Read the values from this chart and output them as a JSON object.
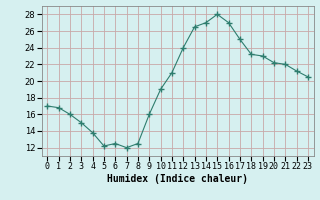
{
  "x": [
    0,
    1,
    2,
    3,
    4,
    5,
    6,
    7,
    8,
    9,
    10,
    11,
    12,
    13,
    14,
    15,
    16,
    17,
    18,
    19,
    20,
    21,
    22,
    23
  ],
  "y": [
    17,
    16.8,
    16,
    15,
    13.8,
    12.2,
    12.5,
    12.0,
    12.5,
    16,
    19,
    21,
    24,
    26.5,
    27,
    28,
    27,
    25,
    23.2,
    23,
    22.2,
    22,
    21.2,
    20.5
  ],
  "line_color": "#2e7d6e",
  "marker": "+",
  "marker_size": 4,
  "bg_color": "#d6f0f0",
  "grid_color": "#c8a8a8",
  "xlabel": "Humidex (Indice chaleur)",
  "ylim": [
    11,
    29
  ],
  "xlim": [
    -0.5,
    23.5
  ],
  "yticks": [
    12,
    14,
    16,
    18,
    20,
    22,
    24,
    26,
    28
  ],
  "xlabel_fontsize": 7,
  "tick_fontsize": 6
}
